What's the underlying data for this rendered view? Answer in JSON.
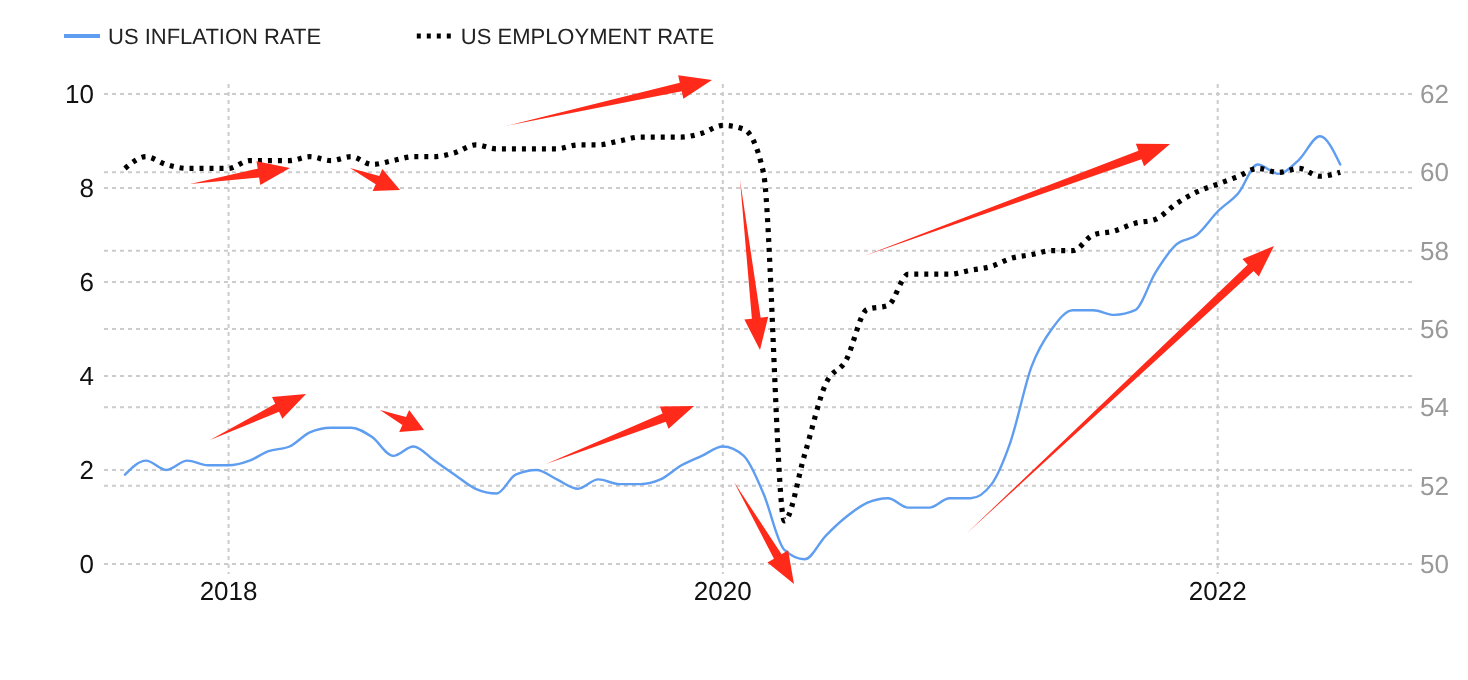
{
  "chart_data": {
    "type": "line",
    "legend": "top left",
    "grid": true,
    "x": [
      "2017-08",
      "2017-09",
      "2017-10",
      "2017-11",
      "2017-12",
      "2018-01",
      "2018-02",
      "2018-03",
      "2018-04",
      "2018-05",
      "2018-06",
      "2018-07",
      "2018-08",
      "2018-09",
      "2018-10",
      "2018-11",
      "2018-12",
      "2019-01",
      "2019-02",
      "2019-03",
      "2019-04",
      "2019-05",
      "2019-06",
      "2019-07",
      "2019-08",
      "2019-09",
      "2019-10",
      "2019-11",
      "2019-12",
      "2020-01",
      "2020-02",
      "2020-03",
      "2020-04",
      "2020-05",
      "2020-06",
      "2020-07",
      "2020-08",
      "2020-09",
      "2020-10",
      "2020-11",
      "2020-12",
      "2021-01",
      "2021-02",
      "2021-03",
      "2021-04",
      "2021-05",
      "2021-06",
      "2021-07",
      "2021-08",
      "2021-09",
      "2021-10",
      "2021-11",
      "2021-12",
      "2022-01",
      "2022-02",
      "2022-03",
      "2022-04",
      "2022-05",
      "2022-06",
      "2022-07"
    ],
    "series": [
      {
        "name": "US INFLATION RATE",
        "color": "#5f9df0",
        "line_style": "solid",
        "values": [
          1.9,
          2.2,
          2.0,
          2.2,
          2.1,
          2.1,
          2.2,
          2.4,
          2.5,
          2.8,
          2.9,
          2.9,
          2.7,
          2.3,
          2.5,
          2.2,
          1.9,
          1.6,
          1.5,
          1.9,
          2.0,
          1.8,
          1.6,
          1.8,
          1.7,
          1.7,
          1.8,
          2.1,
          2.3,
          2.5,
          2.3,
          1.5,
          0.3,
          0.1,
          0.6,
          1.0,
          1.3,
          1.4,
          1.2,
          1.2,
          1.4,
          1.4,
          1.7,
          2.6,
          4.2,
          5.0,
          5.4,
          5.4,
          5.3,
          5.4,
          6.2,
          6.8,
          7.0,
          7.5,
          7.9,
          8.5,
          8.3,
          8.6,
          9.1,
          8.5
        ]
      },
      {
        "name": "US EMPLOYMENT RATE",
        "color": "#000000",
        "line_style": "dotted",
        "axis": "y2",
        "values": [
          60.1,
          60.4,
          60.2,
          60.1,
          60.1,
          60.1,
          60.3,
          60.3,
          60.3,
          60.4,
          60.3,
          60.4,
          60.2,
          60.3,
          60.4,
          60.4,
          60.5,
          60.7,
          60.6,
          60.6,
          60.6,
          60.6,
          60.7,
          60.7,
          60.8,
          60.9,
          60.9,
          60.9,
          61.0,
          61.2,
          61.1,
          60.0,
          51.1,
          52.8,
          54.6,
          55.2,
          56.5,
          56.6,
          57.4,
          57.4,
          57.4,
          57.5,
          57.6,
          57.8,
          57.9,
          58.0,
          58.0,
          58.4,
          58.5,
          58.7,
          58.8,
          59.2,
          59.5,
          59.7,
          59.9,
          60.1,
          60.0,
          60.1,
          59.9,
          60.0
        ]
      }
    ],
    "xlim": [
      "2017-07",
      "2022-10-15"
    ],
    "xticks": [
      {
        "value": "2018-01",
        "label": "2018"
      },
      {
        "value": "2020-01",
        "label": "2020"
      },
      {
        "value": "2022-01",
        "label": "2022"
      }
    ],
    "ylim": [
      0,
      10
    ],
    "yticks": [
      0,
      2,
      4,
      6,
      8,
      10
    ],
    "y2lim": [
      50,
      62
    ],
    "y2ticks": [
      50,
      52,
      54,
      56,
      58,
      60,
      62
    ]
  }
}
